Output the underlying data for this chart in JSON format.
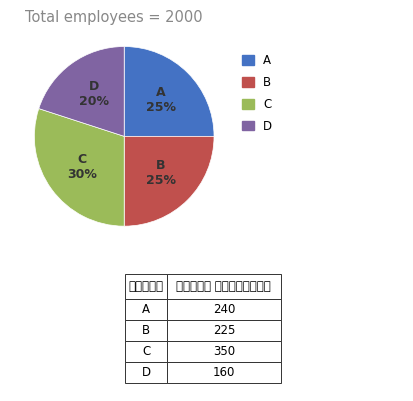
{
  "title": "Total employees = 2000",
  "title_color": "#888888",
  "title_fontsize": 10.5,
  "pie_sizes": [
    25,
    25,
    30,
    20
  ],
  "pie_colors": [
    "#4472C4",
    "#C0504D",
    "#9BBB59",
    "#8064A2"
  ],
  "pie_label_texts": [
    "A\n25%",
    "B\n25%",
    "C\n30%",
    "D\n20%"
  ],
  "legend_labels": [
    "A",
    "B",
    "C",
    "D"
  ],
  "legend_colors": [
    "#4472C4",
    "#C0504D",
    "#9BBB59",
    "#8064A2"
  ],
  "table_col_headers": [
    "विभाग",
    "पुरुष कर्मचारी"
  ],
  "table_rows": [
    [
      "A",
      "240"
    ],
    [
      "B",
      "225"
    ],
    [
      "C",
      "350"
    ],
    [
      "D",
      "160"
    ]
  ],
  "startangle": 90,
  "label_fontsize": 9,
  "label_fontweight": "bold",
  "label_color": "#333333"
}
